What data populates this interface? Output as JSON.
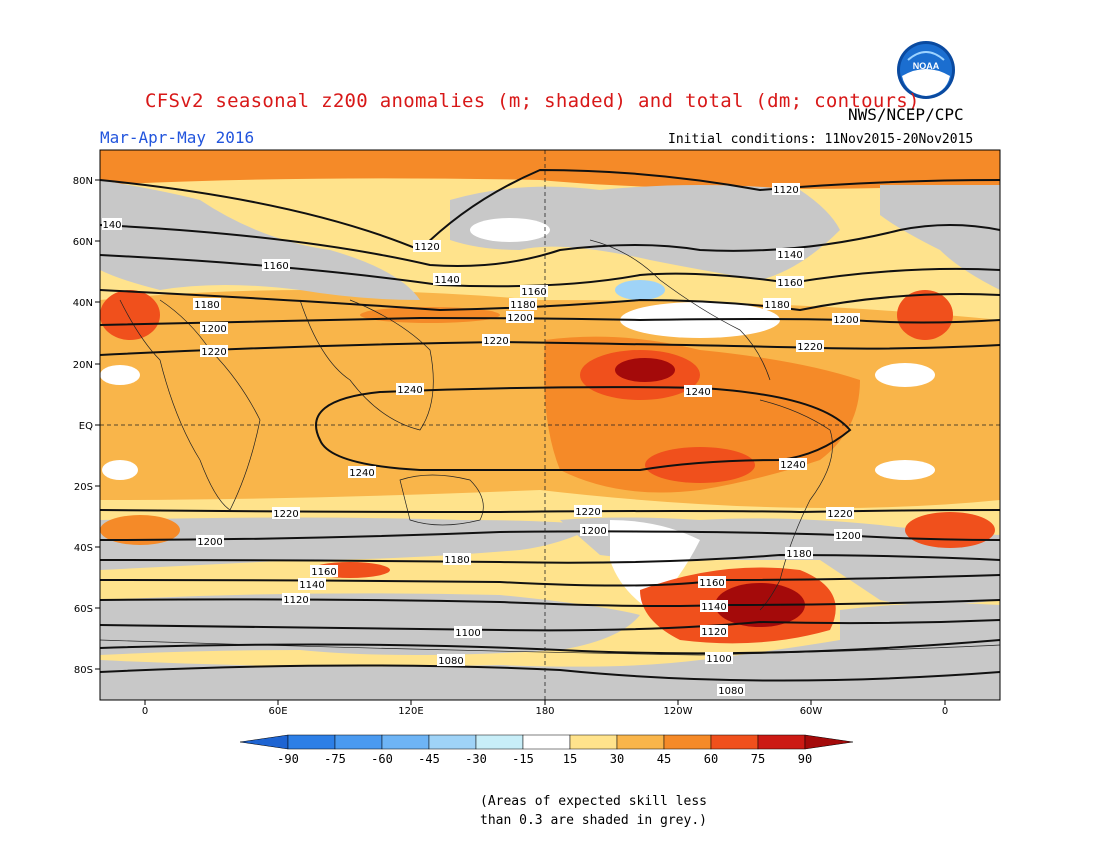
{
  "title": "CFSv2 seasonal z200 anomalies (m; shaded) and total (dm; contours)",
  "season": "Mar-Apr-May 2016",
  "agency": "NWS/NCEP/CPC",
  "initial_conditions": "Initial conditions: 11Nov2015-20Nov2015",
  "logo_text": "NOAA",
  "footnote_line1": "(Areas of expected skill less",
  "footnote_line2": "than 0.3 are shaded in grey.)",
  "lat_labels": [
    "80N",
    "60N",
    "40N",
    "20N",
    "EQ",
    "20S",
    "40S",
    "60S",
    "80S"
  ],
  "lon_labels": [
    "0",
    "60E",
    "120E",
    "180",
    "120W",
    "60W",
    "0"
  ],
  "colorbar": {
    "labels": [
      "-90",
      "-75",
      "-60",
      "-45",
      "-30",
      "-15",
      "15",
      "30",
      "45",
      "60",
      "75",
      "90"
    ],
    "colors": [
      "#1e64d2",
      "#2d7fe6",
      "#4a9af0",
      "#6eb4f5",
      "#9fd3f7",
      "#c8eef8",
      "#ffffff",
      "#ffe38c",
      "#f9b54a",
      "#f58a28",
      "#f0501c",
      "#cc1a14",
      "#a40a0a"
    ]
  },
  "contour_labels": [
    "1080",
    "1100",
    "1120",
    "1140",
    "1160",
    "1180",
    "1200",
    "1220",
    "1240"
  ],
  "colors": {
    "title": "#d81818",
    "season": "#2255dd",
    "grey_skill": "#c8c8c8",
    "ocean_light": "#ffe38c",
    "ocean_mid": "#f9b54a"
  }
}
